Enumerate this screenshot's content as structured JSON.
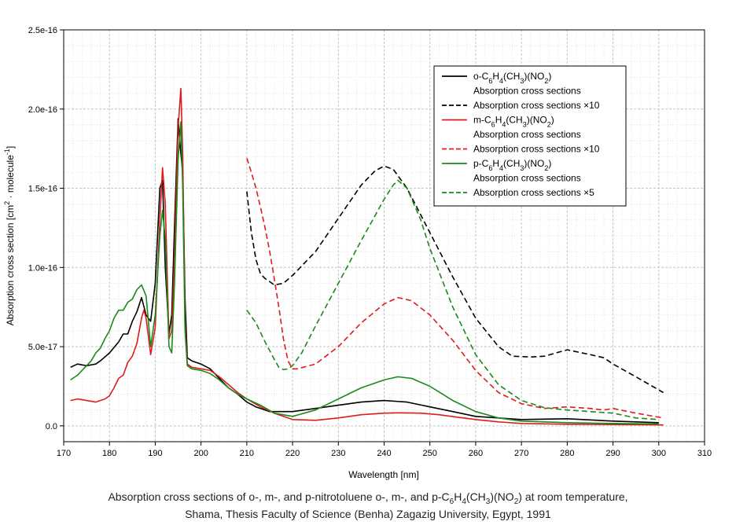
{
  "chart_data": {
    "type": "line",
    "xlabel": "Wavelength [nm]",
    "ylabel_html": "Absorption cross section [cm²·molecule⁻¹]",
    "xlim": [
      170,
      310
    ],
    "ylim": [
      -1e-17,
      2.5e-16
    ],
    "x_ticks": [
      170,
      180,
      190,
      200,
      210,
      220,
      230,
      240,
      250,
      260,
      270,
      280,
      290,
      300,
      310
    ],
    "y_ticks": [
      {
        "value": 0,
        "label": "0.0"
      },
      {
        "value": 5e-17,
        "label": "5.0e-17"
      },
      {
        "value": 1e-16,
        "label": "1.0e-16"
      },
      {
        "value": 1.5e-16,
        "label": "1.5e-16"
      },
      {
        "value": 2e-16,
        "label": "2.0e-16"
      },
      {
        "value": 2.5e-16,
        "label": "2.5e-16"
      }
    ],
    "grid": true,
    "legend_position": "top-right",
    "legend": [
      {
        "line": "solid",
        "color": "#000000",
        "label": "o-C6H4(CH3)(NO2)",
        "second": "Absorption cross sections"
      },
      {
        "line": "dashed",
        "color": "#000000",
        "label": "Absorption cross sections ×10"
      },
      {
        "line": "solid",
        "color": "#dd1c1c",
        "label": "m-C6H4(CH3)(NO2)",
        "second": "Absorption cross sections"
      },
      {
        "line": "dashed",
        "color": "#dd1c1c",
        "label": "Absorption cross sections ×10"
      },
      {
        "line": "solid",
        "color": "#1a8a1a",
        "label": "p-C6H4(CH3)(NO2)",
        "second": "Absorption cross sections"
      },
      {
        "line": "dashed",
        "color": "#1a8a1a",
        "label": "Absorption cross sections ×5"
      }
    ],
    "series": [
      {
        "color": "#000000",
        "dash": false,
        "x": [
          171.5,
          173,
          175,
          177,
          178,
          180,
          182,
          183,
          184,
          185,
          186,
          187,
          188,
          189,
          190,
          191,
          191.6,
          192.2,
          193,
          193.6,
          194.2,
          195,
          195.5,
          196,
          196.5,
          197,
          198,
          200,
          202,
          204,
          206,
          208,
          210,
          212,
          215,
          220,
          225,
          230,
          235,
          240,
          245,
          250,
          255,
          260,
          265,
          270,
          280,
          290,
          300
        ],
        "y": [
          3.7e-17,
          3.9e-17,
          3.8e-17,
          3.9e-17,
          4.1e-17,
          4.6e-17,
          5.3e-17,
          5.8e-17,
          5.8e-17,
          6.6e-17,
          7.2e-17,
          8.1e-17,
          7e-17,
          6.6e-17,
          9e-17,
          1.5e-16,
          1.55e-16,
          1e-16,
          5.8e-17,
          7e-17,
          1.25e-16,
          1.94e-16,
          1.75e-16,
          1.6e-16,
          8e-17,
          4.3e-17,
          4.1e-17,
          3.9e-17,
          3.6e-17,
          3e-17,
          2.4e-17,
          2e-17,
          1.5e-17,
          1.2e-17,
          9e-18,
          9e-18,
          1.1e-17,
          1.3e-17,
          1.5e-17,
          1.6e-17,
          1.5e-17,
          1.2e-17,
          9e-18,
          6e-18,
          5e-18,
          4e-18,
          4.5e-18,
          3e-18,
          2e-18
        ]
      },
      {
        "color": "#000000",
        "dash": true,
        "x": [
          210,
          211,
          212,
          213,
          214,
          215,
          216,
          218,
          220,
          225,
          230,
          235,
          238,
          240,
          242,
          245,
          250,
          255,
          260,
          265,
          268,
          272,
          275,
          280,
          285,
          288,
          290,
          295,
          301
        ],
        "y": [
          1.48e-16,
          1.22e-16,
          1.05e-16,
          9.6e-17,
          9.3e-17,
          9.1e-17,
          8.9e-17,
          9e-17,
          9.5e-17,
          1.1e-16,
          1.31e-16,
          1.52e-16,
          1.61e-16,
          1.64e-16,
          1.62e-16,
          1.5e-16,
          1.22e-16,
          9.4e-17,
          6.8e-17,
          5e-17,
          4.4e-17,
          4.35e-17,
          4.4e-17,
          4.8e-17,
          4.5e-17,
          4.3e-17,
          3.9e-17,
          3.1e-17,
          2.1e-17
        ]
      },
      {
        "color": "#dd1c1c",
        "dash": false,
        "x": [
          171.5,
          173,
          175,
          177,
          179,
          180,
          181,
          182,
          183,
          184,
          185,
          186,
          187,
          187.5,
          188,
          189,
          190,
          191,
          191.6,
          192.2,
          193,
          193.6,
          194.2,
          195,
          195.6,
          196,
          196.5,
          197,
          198,
          200,
          202,
          204,
          206,
          208,
          210,
          213,
          216,
          220,
          225,
          230,
          235,
          240,
          243,
          248,
          252,
          256,
          260,
          265,
          270,
          280,
          290,
          300,
          301
        ],
        "y": [
          1.6e-17,
          1.7e-17,
          1.6e-17,
          1.5e-17,
          1.7e-17,
          1.9e-17,
          2.4e-17,
          3e-17,
          3.2e-17,
          4e-17,
          4.4e-17,
          5.2e-17,
          6.8e-17,
          7.3e-17,
          6.8e-17,
          4.5e-17,
          6.2e-17,
          1.3e-16,
          1.63e-16,
          1.4e-16,
          5.5e-17,
          6e-17,
          1.05e-16,
          1.88e-16,
          2.13e-16,
          1.7e-16,
          6.5e-17,
          3.9e-17,
          3.7e-17,
          3.6e-17,
          3.5e-17,
          3.1e-17,
          2.6e-17,
          2.1e-17,
          1.7e-17,
          1.2e-17,
          8e-18,
          4e-18,
          3.5e-18,
          5e-18,
          7e-18,
          8e-18,
          8.2e-18,
          8e-18,
          7e-18,
          5.5e-18,
          4e-18,
          2.5e-18,
          1.5e-18,
          1e-18,
          8e-19,
          6e-19,
          5e-19
        ]
      },
      {
        "color": "#dd1c1c",
        "dash": true,
        "x": [
          210,
          211,
          212,
          213,
          214,
          215,
          216,
          217,
          218,
          219,
          220,
          221,
          225,
          230,
          235,
          240,
          243,
          246,
          250,
          255,
          260,
          265,
          270,
          275,
          280,
          285,
          288,
          290,
          295,
          301
        ],
        "y": [
          1.69e-16,
          1.6e-16,
          1.5e-16,
          1.38e-16,
          1.25e-16,
          1.1e-16,
          9.3e-17,
          7.5e-17,
          5.5e-17,
          4.1e-17,
          3.6e-17,
          3.6e-17,
          3.9e-17,
          5e-17,
          6.5e-17,
          7.7e-17,
          8.1e-17,
          7.9e-17,
          7e-17,
          5.4e-17,
          3.5e-17,
          2.1e-17,
          1.4e-17,
          1.1e-17,
          1.2e-17,
          1.1e-17,
          1e-17,
          1.1e-17,
          8e-18,
          5e-18
        ]
      },
      {
        "color": "#1a8a1a",
        "dash": false,
        "x": [
          171.5,
          173,
          175,
          176,
          177,
          178,
          179,
          180,
          181,
          182,
          183,
          184,
          185,
          186,
          187,
          188,
          189,
          190,
          191,
          191.6,
          192.2,
          193,
          193.6,
          194.2,
          195,
          195.6,
          196,
          196.5,
          197,
          198,
          200,
          202,
          204,
          206,
          208,
          210,
          213,
          216,
          220,
          225,
          230,
          235,
          240,
          243,
          246,
          250,
          255,
          260,
          265,
          270,
          280,
          290,
          300
        ],
        "y": [
          2.9e-17,
          3.2e-17,
          3.8e-17,
          4.1e-17,
          4.6e-17,
          4.9e-17,
          5.5e-17,
          6e-17,
          6.8e-17,
          7.3e-17,
          7.3e-17,
          7.8e-17,
          8e-17,
          8.6e-17,
          8.9e-17,
          8.2e-17,
          5e-17,
          7e-17,
          1.2e-16,
          1.36e-16,
          1.18e-16,
          5e-17,
          4.6e-17,
          9e-17,
          1.68e-16,
          1.92e-16,
          1.5e-16,
          6e-17,
          3.8e-17,
          3.6e-17,
          3.5e-17,
          3.3e-17,
          2.9e-17,
          2.4e-17,
          2e-17,
          1.7e-17,
          1.3e-17,
          8e-18,
          6e-18,
          1e-17,
          1.7e-17,
          2.4e-17,
          2.9e-17,
          3.1e-17,
          3e-17,
          2.5e-17,
          1.6e-17,
          9e-18,
          5e-18,
          3e-18,
          2e-18,
          1.5e-18,
          1.2e-18
        ]
      },
      {
        "color": "#1a8a1a",
        "dash": true,
        "x": [
          210,
          212,
          214,
          216,
          217,
          218,
          219,
          220,
          222,
          225,
          230,
          235,
          240,
          242,
          243,
          245,
          248,
          250,
          255,
          260,
          265,
          270,
          275,
          280,
          285,
          290,
          295,
          300
        ],
        "y": [
          7.3e-17,
          6.5e-17,
          5.3e-17,
          4.2e-17,
          3.7e-17,
          3.55e-17,
          3.6e-17,
          3.8e-17,
          4.6e-17,
          6.3e-17,
          9e-17,
          1.17e-16,
          1.43e-16,
          1.52e-16,
          1.55e-16,
          1.5e-16,
          1.3e-16,
          1.12e-16,
          7.5e-17,
          4.5e-17,
          2.6e-17,
          1.6e-17,
          1.15e-17,
          1e-17,
          9e-18,
          8e-18,
          5e-18,
          4e-18
        ]
      }
    ]
  },
  "caption": {
    "line1_pre": "Absorption cross sections of o-, m-, and p-nitrotoluene o-, m-, and p-C",
    "line1_post": "at room temperature,",
    "line2": "Shama, Thesis Faculty of Science (Benha) Zagazig University, Egypt, 1991"
  }
}
